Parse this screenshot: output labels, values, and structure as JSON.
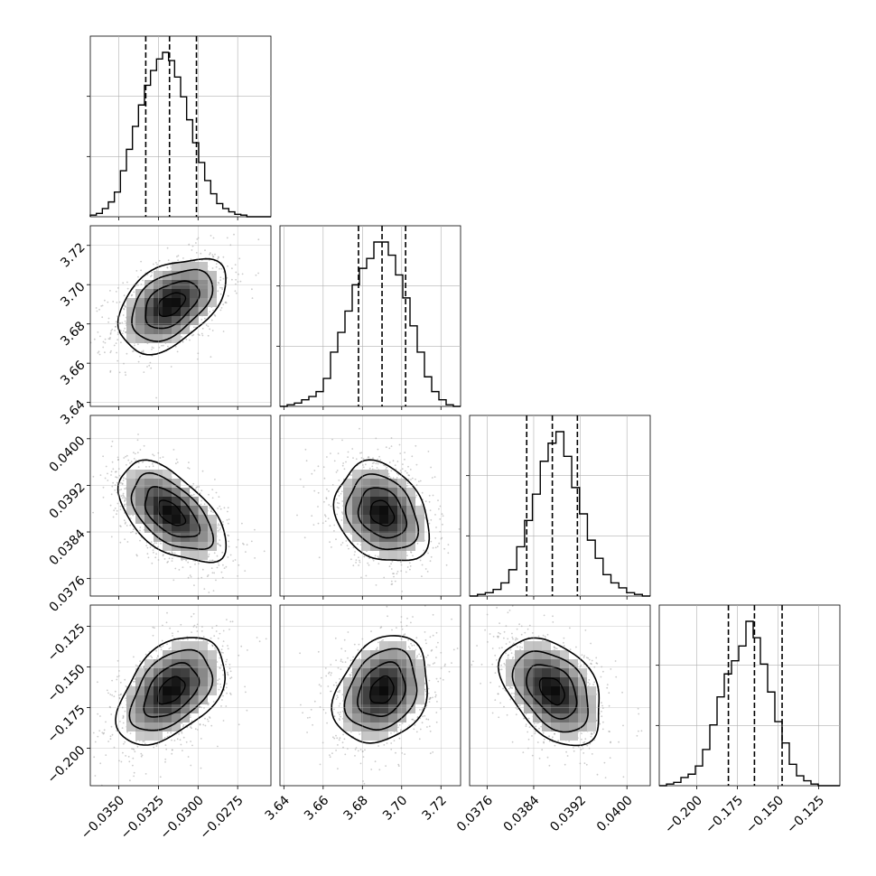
{
  "figure": {
    "type": "corner_plot",
    "grid": true,
    "colors": {
      "line": "#000000",
      "grid": "#b0b0b0",
      "sample": "#8c8c8c",
      "background": "#ffffff"
    }
  },
  "chart_data": {
    "type": "corner",
    "parameters": [
      {
        "index": 0,
        "range": [
          -0.0368,
          -0.0254
        ],
        "ticks": [
          -0.035,
          -0.0325,
          -0.03,
          -0.0275
        ],
        "tick_labels": [
          "−0.0350",
          "−0.0325",
          "−0.0300",
          "−0.0275"
        ],
        "quantiles": [
          -0.0333,
          -0.0318,
          -0.0301
        ],
        "mean": -0.0317,
        "sigma": 0.0017,
        "hist": [
          0.01,
          0.02,
          0.05,
          0.09,
          0.15,
          0.28,
          0.41,
          0.55,
          0.68,
          0.8,
          0.89,
          0.96,
          1.0,
          0.95,
          0.85,
          0.73,
          0.59,
          0.45,
          0.33,
          0.22,
          0.14,
          0.08,
          0.05,
          0.03,
          0.015,
          0.01,
          0.0,
          0.0,
          0.0,
          0.0
        ]
      },
      {
        "index": 1,
        "range": [
          3.638,
          3.73
        ],
        "ticks": [
          3.64,
          3.66,
          3.68,
          3.7,
          3.72
        ],
        "tick_labels": [
          "3.64",
          "3.66",
          "3.68",
          "3.70",
          "3.72"
        ],
        "quantiles": [
          3.678,
          3.69,
          3.702
        ],
        "mean": 3.69,
        "sigma": 0.012,
        "hist": [
          0.0,
          0.01,
          0.02,
          0.04,
          0.06,
          0.09,
          0.17,
          0.33,
          0.45,
          0.58,
          0.74,
          0.84,
          0.9,
          1.0,
          1.0,
          0.92,
          0.8,
          0.66,
          0.49,
          0.33,
          0.18,
          0.09,
          0.04,
          0.01,
          0.0
        ]
      },
      {
        "index": 2,
        "range": [
          0.0373,
          0.0404
        ],
        "ticks": [
          0.0376,
          0.0384,
          0.0392,
          0.04
        ],
        "tick_labels": [
          "0.0376",
          "0.0384",
          "0.0392",
          "0.0400"
        ],
        "quantiles": [
          0.03828,
          0.03872,
          0.03915
        ],
        "mean": 0.03872,
        "sigma": 0.00043,
        "hist": [
          0.0,
          0.01,
          0.02,
          0.04,
          0.08,
          0.16,
          0.3,
          0.46,
          0.62,
          0.82,
          0.93,
          1.0,
          0.85,
          0.66,
          0.5,
          0.34,
          0.23,
          0.13,
          0.08,
          0.05,
          0.02,
          0.01,
          0.0
        ]
      },
      {
        "index": 3,
        "range": [
          -0.223,
          -0.112
        ],
        "ticks": [
          -0.2,
          -0.175,
          -0.15,
          -0.125
        ],
        "tick_labels": [
          "−0.200",
          "−0.175",
          "−0.150",
          "−0.125"
        ],
        "quantiles": [
          -0.1805,
          -0.1645,
          -0.1475
        ],
        "mean": -0.1645,
        "sigma": 0.0165,
        "hist": [
          0.0,
          0.01,
          0.02,
          0.05,
          0.07,
          0.12,
          0.22,
          0.37,
          0.54,
          0.68,
          0.76,
          0.85,
          1.0,
          0.9,
          0.74,
          0.57,
          0.39,
          0.26,
          0.13,
          0.06,
          0.03,
          0.01,
          0.0,
          0.0,
          0.0
        ]
      }
    ],
    "correlations": [
      {
        "i": 1,
        "j": 0,
        "rho": 0.45
      },
      {
        "i": 2,
        "j": 0,
        "rho": -0.55
      },
      {
        "i": 2,
        "j": 1,
        "rho": -0.25
      },
      {
        "i": 3,
        "j": 0,
        "rho": 0.45
      },
      {
        "i": 3,
        "j": 1,
        "rho": 0.25
      },
      {
        "i": 3,
        "j": 2,
        "rho": -0.4
      }
    ],
    "contour_levels_sigma": [
      0.5,
      1.0,
      1.5,
      2.0
    ]
  }
}
